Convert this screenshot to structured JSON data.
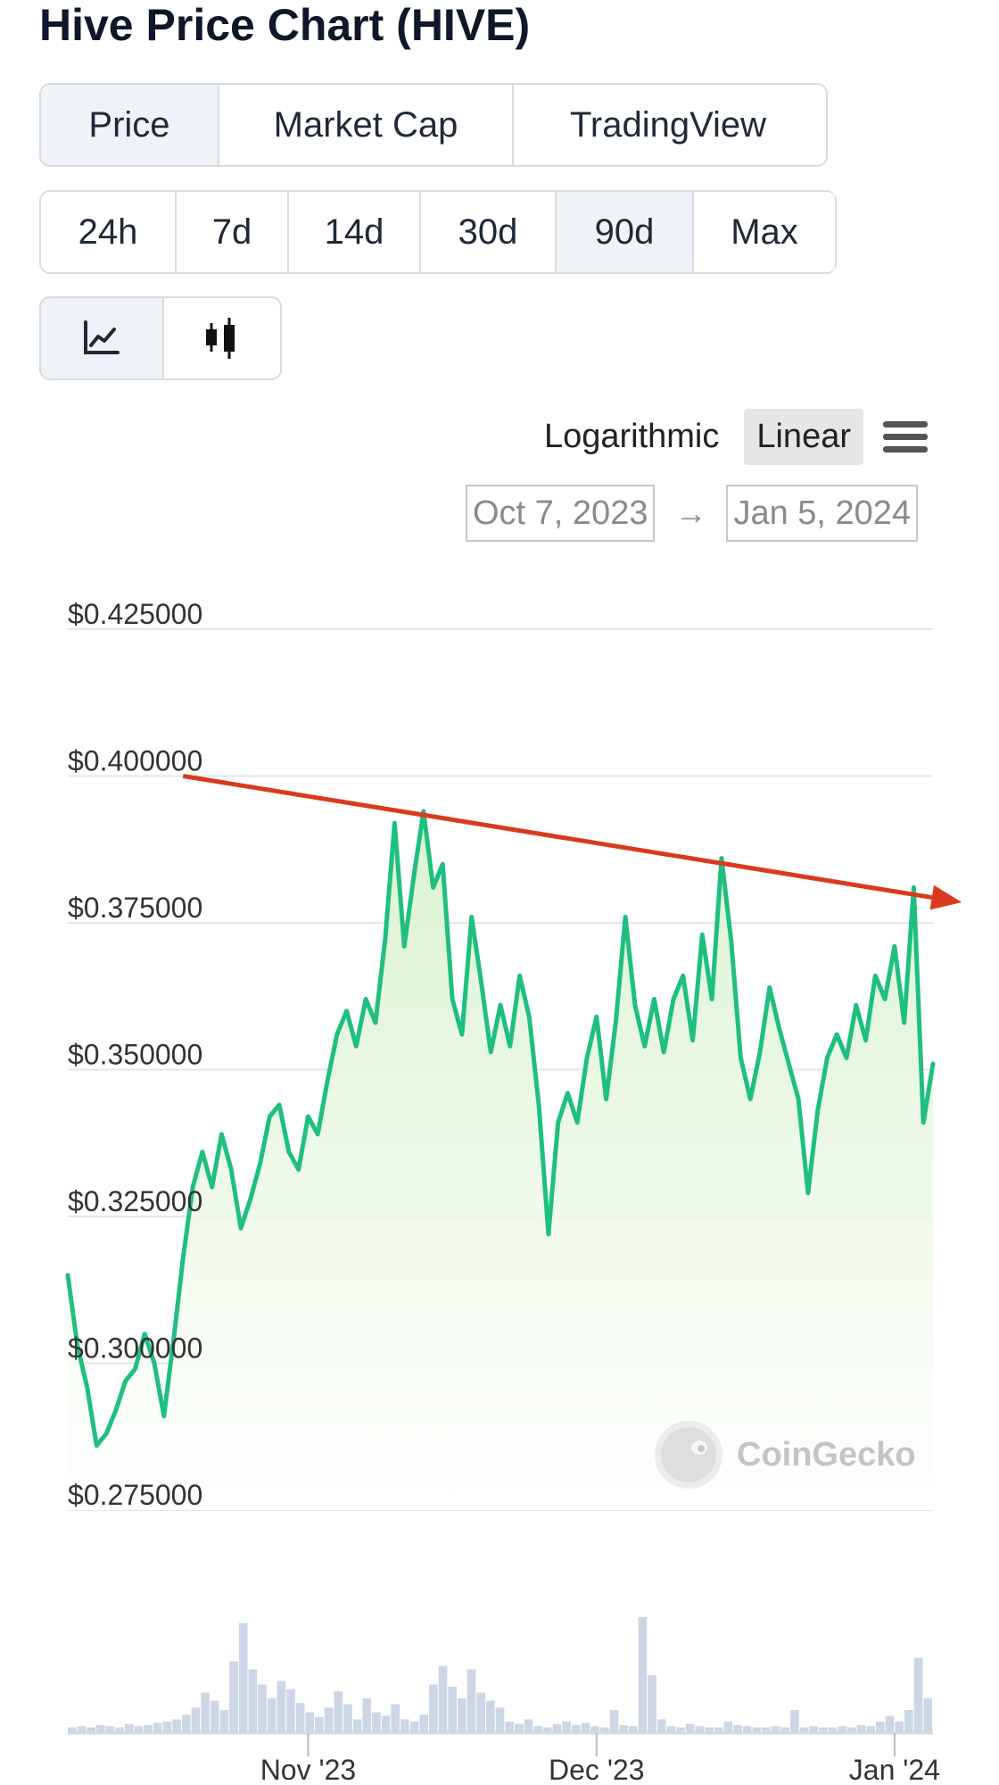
{
  "page": {
    "title": "Hive Price Chart (HIVE)"
  },
  "tabs": [
    "Price",
    "Market Cap",
    "TradingView"
  ],
  "active_tab": "Price",
  "ranges": [
    "24h",
    "7d",
    "14d",
    "30d",
    "90d",
    "Max"
  ],
  "active_range": "90d",
  "chart_types": [
    {
      "icon": "line-chart-icon",
      "active": true
    },
    {
      "icon": "candlestick-icon",
      "active": false
    }
  ],
  "scale": {
    "log_label": "Logarithmic",
    "linear_label": "Linear",
    "active": "Linear"
  },
  "date_range": {
    "from": "Oct 7, 2023",
    "to": "Jan 5, 2024",
    "arrow": "→"
  },
  "watermark": "CoinGecko",
  "colors": {
    "line": "#1fbf7f",
    "fill_top": "#d9f2cf",
    "trend": "#d93a1f",
    "volume": "#c3cfe0"
  },
  "chart_data": {
    "type": "line",
    "title": "",
    "xlabel": "",
    "ylabel": "",
    "ylim": [
      0.275,
      0.425
    ],
    "y_ticks": [
      {
        "v": 0.425,
        "label": "$0.425000"
      },
      {
        "v": 0.4,
        "label": "$0.400000"
      },
      {
        "v": 0.375,
        "label": "$0.375000"
      },
      {
        "v": 0.35,
        "label": "$0.350000"
      },
      {
        "v": 0.325,
        "label": "$0.325000"
      },
      {
        "v": 0.3,
        "label": "$0.300000"
      },
      {
        "v": 0.275,
        "label": "$0.275000"
      }
    ],
    "x_range": [
      "2023-10-07",
      "2024-01-05"
    ],
    "x_ticks": [
      {
        "date": "2023-11-01",
        "label": "Nov '23"
      },
      {
        "date": "2023-12-01",
        "label": "Dec '23"
      },
      {
        "date": "2024-01-01",
        "label": "Jan '24"
      }
    ],
    "series": [
      {
        "points": [
          [
            "2023-10-07",
            0.315
          ],
          [
            "2023-10-08",
            0.303
          ],
          [
            "2023-10-09",
            0.296
          ],
          [
            "2023-10-10",
            0.286
          ],
          [
            "2023-10-11",
            0.288
          ],
          [
            "2023-10-12",
            0.292
          ],
          [
            "2023-10-13",
            0.297
          ],
          [
            "2023-10-14",
            0.299
          ],
          [
            "2023-10-15",
            0.305
          ],
          [
            "2023-10-16",
            0.3
          ],
          [
            "2023-10-17",
            0.291
          ],
          [
            "2023-10-18",
            0.304
          ],
          [
            "2023-10-19",
            0.318
          ],
          [
            "2023-10-20",
            0.33
          ],
          [
            "2023-10-21",
            0.336
          ],
          [
            "2023-10-22",
            0.33
          ],
          [
            "2023-10-23",
            0.339
          ],
          [
            "2023-10-24",
            0.333
          ],
          [
            "2023-10-25",
            0.323
          ],
          [
            "2023-10-26",
            0.328
          ],
          [
            "2023-10-27",
            0.334
          ],
          [
            "2023-10-28",
            0.342
          ],
          [
            "2023-10-29",
            0.344
          ],
          [
            "2023-10-30",
            0.336
          ],
          [
            "2023-10-31",
            0.333
          ],
          [
            "2023-11-01",
            0.342
          ],
          [
            "2023-11-02",
            0.339
          ],
          [
            "2023-11-03",
            0.348
          ],
          [
            "2023-11-04",
            0.356
          ],
          [
            "2023-11-05",
            0.36
          ],
          [
            "2023-11-06",
            0.354
          ],
          [
            "2023-11-07",
            0.362
          ],
          [
            "2023-11-08",
            0.358
          ],
          [
            "2023-11-09",
            0.372
          ],
          [
            "2023-11-10",
            0.392
          ],
          [
            "2023-11-11",
            0.371
          ],
          [
            "2023-11-12",
            0.383
          ],
          [
            "2023-11-13",
            0.394
          ],
          [
            "2023-11-14",
            0.381
          ],
          [
            "2023-11-15",
            0.385
          ],
          [
            "2023-11-16",
            0.362
          ],
          [
            "2023-11-17",
            0.356
          ],
          [
            "2023-11-18",
            0.376
          ],
          [
            "2023-11-19",
            0.365
          ],
          [
            "2023-11-20",
            0.353
          ],
          [
            "2023-11-21",
            0.361
          ],
          [
            "2023-11-22",
            0.354
          ],
          [
            "2023-11-23",
            0.366
          ],
          [
            "2023-11-24",
            0.359
          ],
          [
            "2023-11-25",
            0.344
          ],
          [
            "2023-11-26",
            0.322
          ],
          [
            "2023-11-27",
            0.341
          ],
          [
            "2023-11-28",
            0.346
          ],
          [
            "2023-11-29",
            0.341
          ],
          [
            "2023-11-30",
            0.352
          ],
          [
            "2023-12-01",
            0.359
          ],
          [
            "2023-12-02",
            0.345
          ],
          [
            "2023-12-03",
            0.358
          ],
          [
            "2023-12-04",
            0.376
          ],
          [
            "2023-12-05",
            0.361
          ],
          [
            "2023-12-06",
            0.354
          ],
          [
            "2023-12-07",
            0.362
          ],
          [
            "2023-12-08",
            0.353
          ],
          [
            "2023-12-09",
            0.362
          ],
          [
            "2023-12-10",
            0.366
          ],
          [
            "2023-12-11",
            0.355
          ],
          [
            "2023-12-12",
            0.373
          ],
          [
            "2023-12-13",
            0.362
          ],
          [
            "2023-12-14",
            0.386
          ],
          [
            "2023-12-15",
            0.372
          ],
          [
            "2023-12-16",
            0.352
          ],
          [
            "2023-12-17",
            0.345
          ],
          [
            "2023-12-18",
            0.353
          ],
          [
            "2023-12-19",
            0.364
          ],
          [
            "2023-12-20",
            0.357
          ],
          [
            "2023-12-21",
            0.351
          ],
          [
            "2023-12-22",
            0.345
          ],
          [
            "2023-12-23",
            0.329
          ],
          [
            "2023-12-24",
            0.343
          ],
          [
            "2023-12-25",
            0.352
          ],
          [
            "2023-12-26",
            0.356
          ],
          [
            "2023-12-27",
            0.352
          ],
          [
            "2023-12-28",
            0.361
          ],
          [
            "2023-12-29",
            0.355
          ],
          [
            "2023-12-30",
            0.366
          ],
          [
            "2023-12-31",
            0.362
          ],
          [
            "2024-01-01",
            0.371
          ],
          [
            "2024-01-02",
            0.358
          ],
          [
            "2024-01-03",
            0.381
          ],
          [
            "2024-01-04",
            0.341
          ],
          [
            "2024-01-05",
            0.351
          ]
        ]
      }
    ],
    "volume": [
      0.05,
      0.06,
      0.05,
      0.07,
      0.06,
      0.05,
      0.08,
      0.06,
      0.07,
      0.09,
      0.1,
      0.12,
      0.16,
      0.22,
      0.35,
      0.28,
      0.2,
      0.62,
      0.95,
      0.55,
      0.42,
      0.3,
      0.45,
      0.38,
      0.26,
      0.18,
      0.14,
      0.22,
      0.36,
      0.25,
      0.12,
      0.3,
      0.18,
      0.15,
      0.25,
      0.12,
      0.1,
      0.16,
      0.42,
      0.58,
      0.4,
      0.3,
      0.55,
      0.35,
      0.28,
      0.22,
      0.1,
      0.08,
      0.12,
      0.06,
      0.05,
      0.08,
      0.1,
      0.07,
      0.09,
      0.06,
      0.05,
      0.2,
      0.07,
      0.06,
      1.0,
      0.5,
      0.12,
      0.06,
      0.05,
      0.08,
      0.06,
      0.05,
      0.05,
      0.1,
      0.07,
      0.06,
      0.05,
      0.05,
      0.06,
      0.05,
      0.2,
      0.05,
      0.06,
      0.05,
      0.05,
      0.06,
      0.05,
      0.07,
      0.06,
      0.1,
      0.15,
      0.1,
      0.2,
      0.65,
      0.3
    ],
    "trend_line": {
      "from": [
        "2023-10-19",
        0.4
      ],
      "to": [
        "2024-01-08",
        0.3785
      ]
    },
    "grid": true,
    "legend": "none"
  }
}
